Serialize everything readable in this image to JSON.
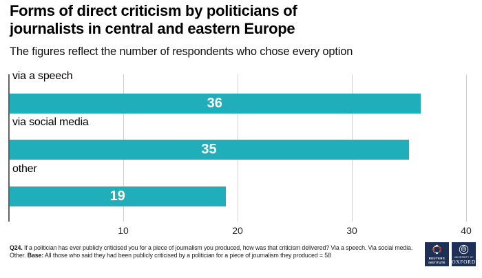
{
  "title": {
    "lines": [
      "Forms of direct criticism by politicians of",
      "journalists in central and eastern Europe"
    ]
  },
  "subtitle": "The figures reflect the number of respondents who chose every option",
  "chart_data": {
    "type": "bar",
    "orientation": "horizontal",
    "title": "Forms of direct criticism by politicians of journalists in central and eastern Europe",
    "subtitle": "The figures reflect the number of respondents who chose every option",
    "categories": [
      "via a speech",
      "via social media",
      "other"
    ],
    "values": [
      36,
      35,
      19
    ],
    "xlim": [
      0,
      40
    ],
    "xticks": [
      10,
      20,
      30,
      40
    ],
    "grid": true,
    "value_label_position": "inside-center",
    "bar_color": "#21AEBB",
    "value_label_color": "#FFFFFF"
  },
  "footer": {
    "q_label": "Q24.",
    "q_text": " If a politician has ever publicly criticised you for a piece of journalism you produced, how was that criticism delivered? Via a speech. Via social media. Other. ",
    "base_label": "Base:",
    "base_text": " All those who said they had been publicly criticised by a politician for a piece of journalism they produced = 58"
  },
  "logos": {
    "reuters_institute": {
      "line1": "REUTERS",
      "line2": "INSTITUTE"
    },
    "oxford": {
      "line1": "UNIVERSITY OF",
      "line2": "OXFORD"
    }
  },
  "colors": {
    "bar": "#21AEBB",
    "gridline": "#D2D2D2",
    "axis_line": "#636363",
    "logo_navy": "#1E3055",
    "value_text": "#FFFFFF"
  }
}
